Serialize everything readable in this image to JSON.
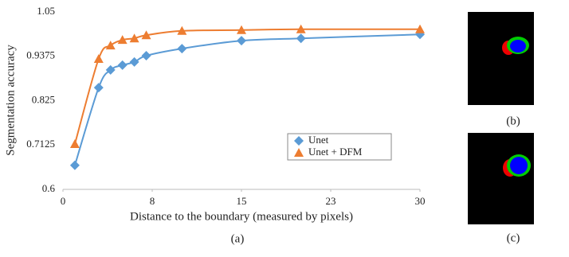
{
  "chart_data": {
    "type": "line",
    "ylabel": "Segmentation accuracy",
    "xlabel": "Distance to the boundary  (measured by pixels)",
    "x": [
      1,
      3,
      4,
      5,
      6,
      7,
      10,
      15,
      20,
      30
    ],
    "series": [
      {
        "name": "Unet",
        "color": "#5b9bd5",
        "marker": "diamond",
        "values": [
          0.661,
          0.858,
          0.903,
          0.915,
          0.923,
          0.939,
          0.957,
          0.977,
          0.983,
          0.993
        ]
      },
      {
        "name": "Unet + DFM",
        "color": "#ed7d31",
        "marker": "triangle",
        "values": [
          0.715,
          0.931,
          0.965,
          0.979,
          0.983,
          0.991,
          1.002,
          1.004,
          1.006,
          1.006
        ]
      }
    ],
    "xlim": [
      0,
      30
    ],
    "xticks": [
      0,
      {
        "value": 7.5,
        "label": "8"
      },
      15,
      {
        "value": 22.5,
        "label": "23"
      },
      30
    ],
    "ylim": [
      0.6,
      1.05
    ],
    "yticks": [
      0.6,
      0.7125,
      0.825,
      0.9375,
      1.05
    ],
    "grid": false,
    "legend": "center-right",
    "caption": "(a)"
  },
  "panels": {
    "b": "(b)",
    "c": "(c)"
  }
}
